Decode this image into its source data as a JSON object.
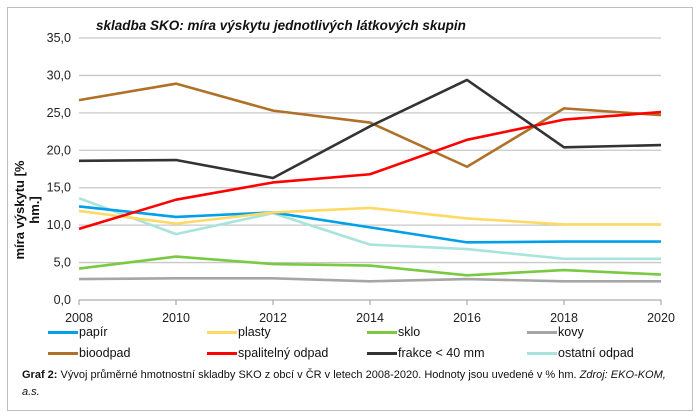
{
  "chart_data": {
    "type": "line",
    "title": "skladba SKO: míra výskytu jednotlivých látkových skupin",
    "xlabel": "",
    "ylabel": "míra výskytu  [% hm.]",
    "x": [
      2008,
      2010,
      2012,
      2014,
      2016,
      2018,
      2020
    ],
    "ylim": [
      0,
      35
    ],
    "yticks": [
      "0,0",
      "5,0",
      "10,0",
      "15,0",
      "20,0",
      "25,0",
      "30,0",
      "35,0"
    ],
    "grid": true,
    "legend": "bottom",
    "series": [
      {
        "name": "papír",
        "color": "#00a0e9",
        "values": [
          12.5,
          11.1,
          11.7,
          9.7,
          7.7,
          7.8,
          7.8
        ]
      },
      {
        "name": "plasty",
        "color": "#ffd966",
        "values": [
          11.9,
          10.2,
          11.7,
          12.3,
          10.9,
          10.1,
          10.1
        ]
      },
      {
        "name": "sklo",
        "color": "#7ac943",
        "values": [
          4.2,
          5.8,
          4.8,
          4.6,
          3.3,
          4.0,
          3.4
        ]
      },
      {
        "name": "kovy",
        "color": "#a6a6a6",
        "values": [
          2.8,
          2.9,
          2.9,
          2.5,
          2.8,
          2.5,
          2.5
        ]
      },
      {
        "name": "bioodpad",
        "color": "#b07028",
        "values": [
          26.7,
          28.9,
          25.3,
          23.7,
          17.8,
          25.6,
          24.7
        ]
      },
      {
        "name": "spalitelný odpad",
        "color": "#ff0000",
        "values": [
          9.5,
          13.4,
          15.7,
          16.8,
          21.4,
          24.1,
          25.1
        ]
      },
      {
        "name": "frakce < 40 mm",
        "color": "#333333",
        "values": [
          18.6,
          18.7,
          16.3,
          23.2,
          29.4,
          20.4,
          20.7
        ]
      },
      {
        "name": "ostatní odpad",
        "color": "#a8e4dc",
        "values": [
          13.6,
          8.8,
          11.6,
          7.4,
          6.8,
          5.5,
          5.5
        ]
      }
    ]
  },
  "caption": {
    "label": "Graf 2:",
    "text": " Vývoj průměrné hmotnostní skladby SKO z obcí v ČR v letech  2008-2020. Hodnoty jsou uvedené v % hm. ",
    "source": "Zdroj: EKO-KOM, a.s."
  }
}
